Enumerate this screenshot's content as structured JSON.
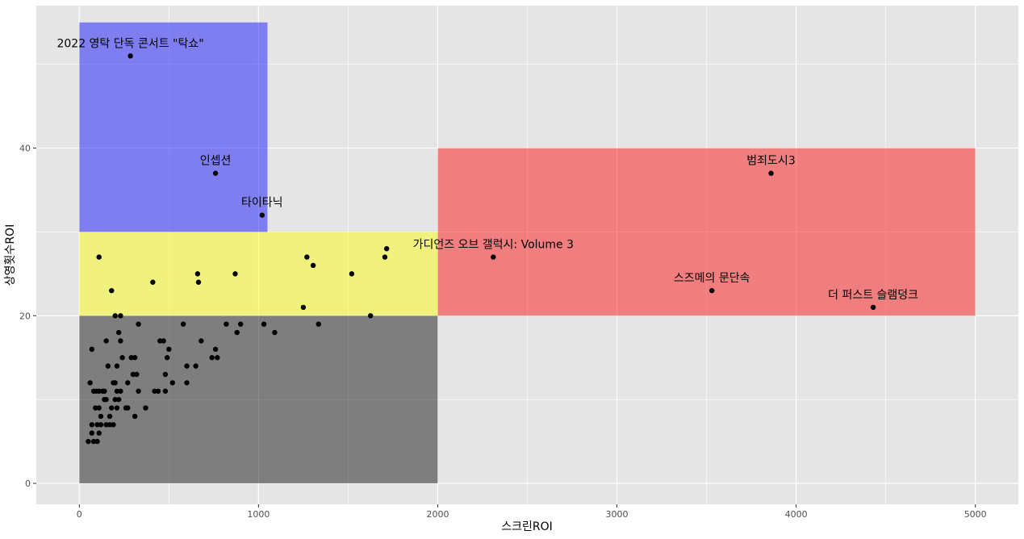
{
  "chart_data": {
    "type": "scatter",
    "title": "",
    "xlabel": "스크린ROI",
    "ylabel": "상영횟수ROI",
    "xlim": [
      -240,
      5240
    ],
    "ylim": [
      -2.5,
      57
    ],
    "x_ticks": [
      0,
      1000,
      2000,
      3000,
      4000,
      5000
    ],
    "y_ticks": [
      0,
      20,
      40
    ],
    "grid": true,
    "colors": {
      "panel_bg": "#e5e5e5",
      "grid_major": "#ffffff",
      "point": "#000000",
      "region_blue": "#0000ff",
      "region_yellow": "#ffff00",
      "region_red": "#ff0000",
      "region_gray": "#000000"
    },
    "regions": [
      {
        "color": "#0000ff",
        "opacity": 0.45,
        "x": [
          0,
          1050
        ],
        "y": [
          30,
          55
        ]
      },
      {
        "color": "#ffff00",
        "opacity": 0.45,
        "x": [
          0,
          2000
        ],
        "y": [
          20,
          30
        ]
      },
      {
        "color": "#ff0000",
        "opacity": 0.45,
        "x": [
          2000,
          5000
        ],
        "y": [
          20,
          40
        ]
      },
      {
        "color": "#000000",
        "opacity": 0.45,
        "x": [
          0,
          2000
        ],
        "y": [
          0,
          20
        ]
      }
    ],
    "labeled_points": [
      {
        "label": "2022 영탁 단독 콘서트 \"탁쇼\"",
        "x": 285,
        "y": 51
      },
      {
        "label": "인셉션",
        "x": 760,
        "y": 37
      },
      {
        "label": "타이타닉",
        "x": 1020,
        "y": 32
      },
      {
        "label": "범죄도시3",
        "x": 3860,
        "y": 37
      },
      {
        "label": "가디언즈 오브 갤럭시: Volume 3",
        "x": 2310,
        "y": 27
      },
      {
        "label": "스즈메의 문단속",
        "x": 3530,
        "y": 23
      },
      {
        "label": "더 퍼스트 슬램덩크",
        "x": 4430,
        "y": 21
      }
    ],
    "points": [
      [
        110,
        27
      ],
      [
        180,
        23
      ],
      [
        200,
        20
      ],
      [
        230,
        20
      ],
      [
        410,
        24
      ],
      [
        660,
        25
      ],
      [
        665,
        24
      ],
      [
        870,
        25
      ],
      [
        1270,
        27
      ],
      [
        1305,
        26
      ],
      [
        1250,
        21
      ],
      [
        1520,
        25
      ],
      [
        1625,
        20
      ],
      [
        1705,
        27
      ],
      [
        1715,
        28
      ],
      [
        1335,
        19
      ],
      [
        1030,
        19
      ],
      [
        1090,
        18
      ],
      [
        70,
        16
      ],
      [
        60,
        12
      ],
      [
        80,
        11
      ],
      [
        95,
        11
      ],
      [
        110,
        11
      ],
      [
        140,
        11
      ],
      [
        150,
        10
      ],
      [
        160,
        14
      ],
      [
        150,
        17
      ],
      [
        210,
        14
      ],
      [
        200,
        12
      ],
      [
        210,
        11
      ],
      [
        230,
        11
      ],
      [
        260,
        9
      ],
      [
        240,
        15
      ],
      [
        290,
        15
      ],
      [
        300,
        13
      ],
      [
        310,
        15
      ],
      [
        320,
        13
      ],
      [
        330,
        11
      ],
      [
        330,
        19
      ],
      [
        220,
        18
      ],
      [
        230,
        17
      ],
      [
        270,
        12
      ],
      [
        370,
        9
      ],
      [
        420,
        11
      ],
      [
        440,
        11
      ],
      [
        450,
        17
      ],
      [
        470,
        17
      ],
      [
        480,
        13
      ],
      [
        480,
        11
      ],
      [
        490,
        15
      ],
      [
        500,
        16
      ],
      [
        520,
        12
      ],
      [
        580,
        19
      ],
      [
        600,
        14
      ],
      [
        600,
        12
      ],
      [
        650,
        14
      ],
      [
        680,
        17
      ],
      [
        740,
        15
      ],
      [
        760,
        16
      ],
      [
        770,
        15
      ],
      [
        820,
        19
      ],
      [
        880,
        18
      ],
      [
        900,
        19
      ],
      [
        310,
        8
      ],
      [
        270,
        9
      ],
      [
        50,
        5
      ],
      [
        70,
        6
      ],
      [
        80,
        5
      ],
      [
        100,
        5
      ],
      [
        100,
        7
      ],
      [
        70,
        7
      ],
      [
        90,
        9
      ],
      [
        110,
        6
      ],
      [
        120,
        8
      ],
      [
        120,
        7
      ],
      [
        140,
        10
      ],
      [
        150,
        7
      ],
      [
        170,
        7
      ],
      [
        180,
        9
      ],
      [
        190,
        7
      ],
      [
        200,
        10
      ],
      [
        210,
        9
      ],
      [
        190,
        12
      ],
      [
        110,
        9
      ],
      [
        130,
        11
      ],
      [
        170,
        8
      ],
      [
        220,
        10
      ]
    ]
  }
}
